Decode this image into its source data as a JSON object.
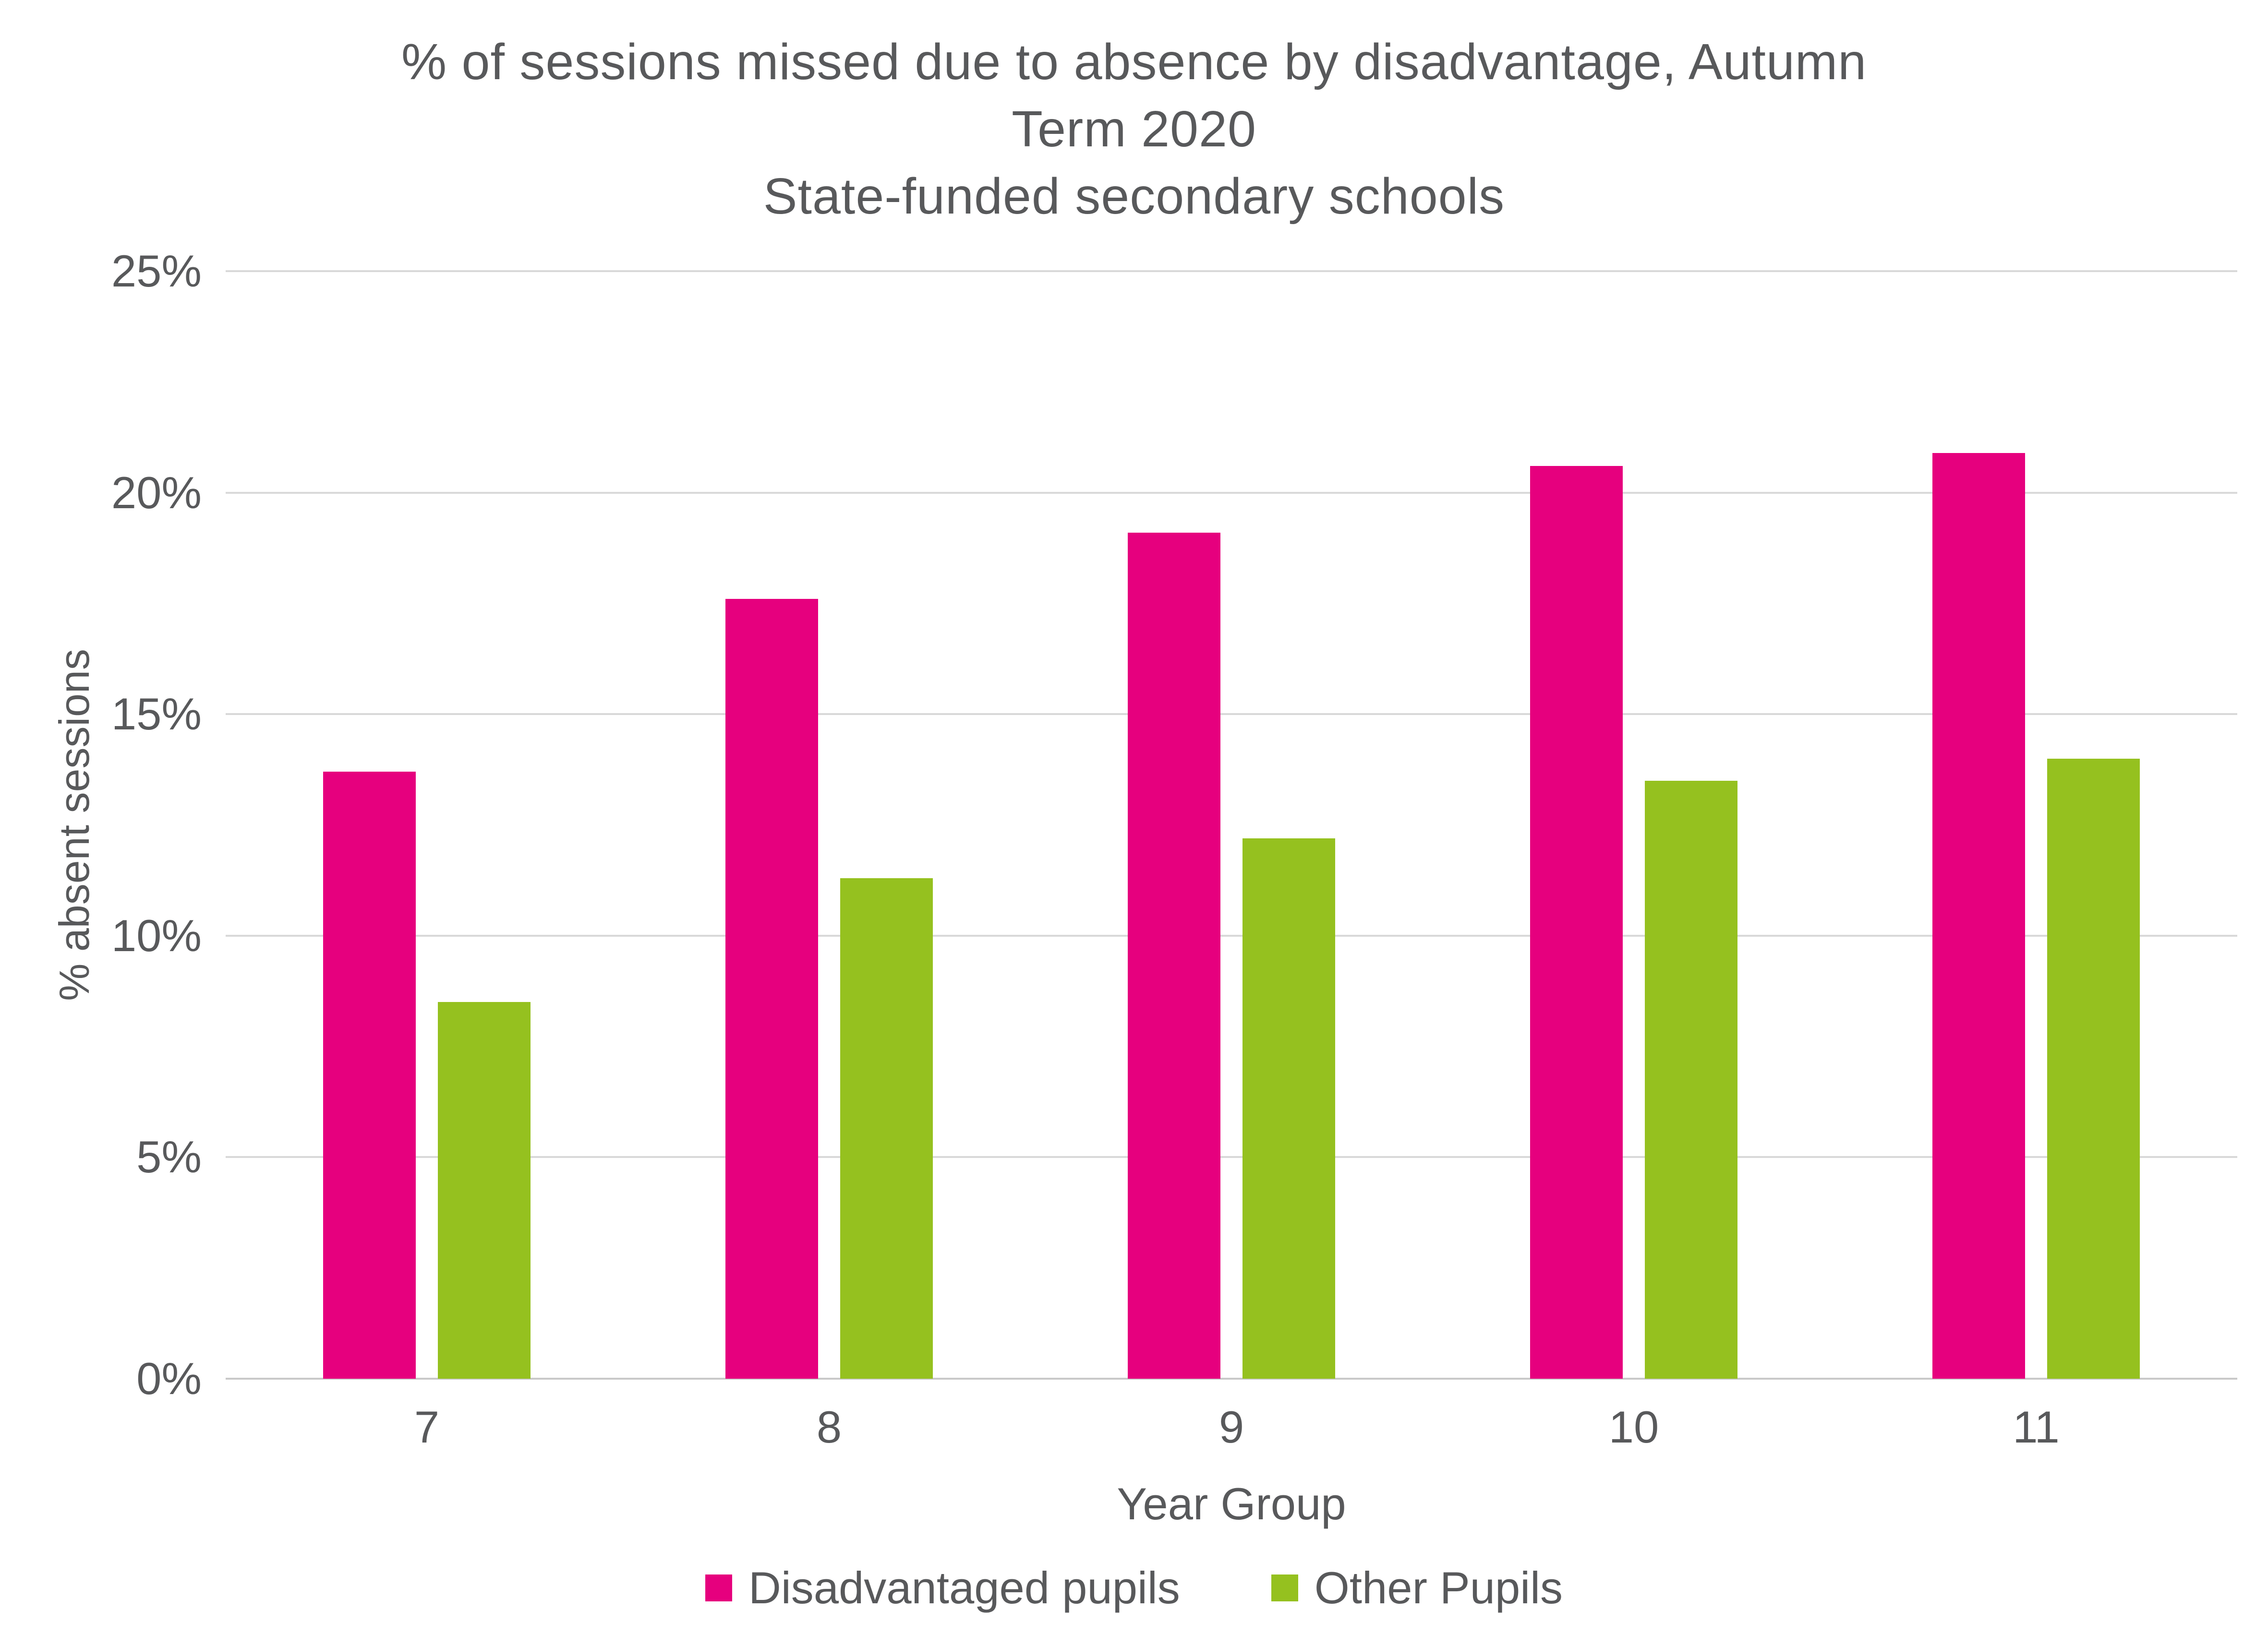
{
  "title": {
    "line1": "% of sessions missed due to absence by disadvantage, Autumn",
    "line2": "Term 2020",
    "line3": "State-funded secondary schools"
  },
  "colors": {
    "disadvantaged": "#e6007e",
    "other": "#95c11f",
    "text": "#58595b",
    "gridline": "#d9d9d9"
  },
  "chart_data": {
    "type": "bar",
    "title": "% of sessions missed due to absence by disadvantage, Autumn Term 2020 — State-funded secondary schools",
    "categories": [
      "7",
      "8",
      "9",
      "10",
      "11"
    ],
    "series": [
      {
        "name": "Disadvantaged pupils",
        "color": "#e6007e",
        "values": [
          13.7,
          17.6,
          19.1,
          20.6,
          20.9
        ]
      },
      {
        "name": "Other Pupils",
        "color": "#95c11f",
        "values": [
          8.5,
          11.3,
          12.2,
          13.5,
          14.0
        ]
      }
    ],
    "xlabel": "Year Group",
    "ylabel": "% absent sessions",
    "ylim": [
      0,
      25
    ],
    "ytick_values": [
      0,
      5,
      10,
      15,
      20,
      25
    ],
    "yticks": [
      "0%",
      "5%",
      "10%",
      "15%",
      "20%",
      "25%"
    ],
    "grid": true,
    "legend_position": "bottom"
  }
}
